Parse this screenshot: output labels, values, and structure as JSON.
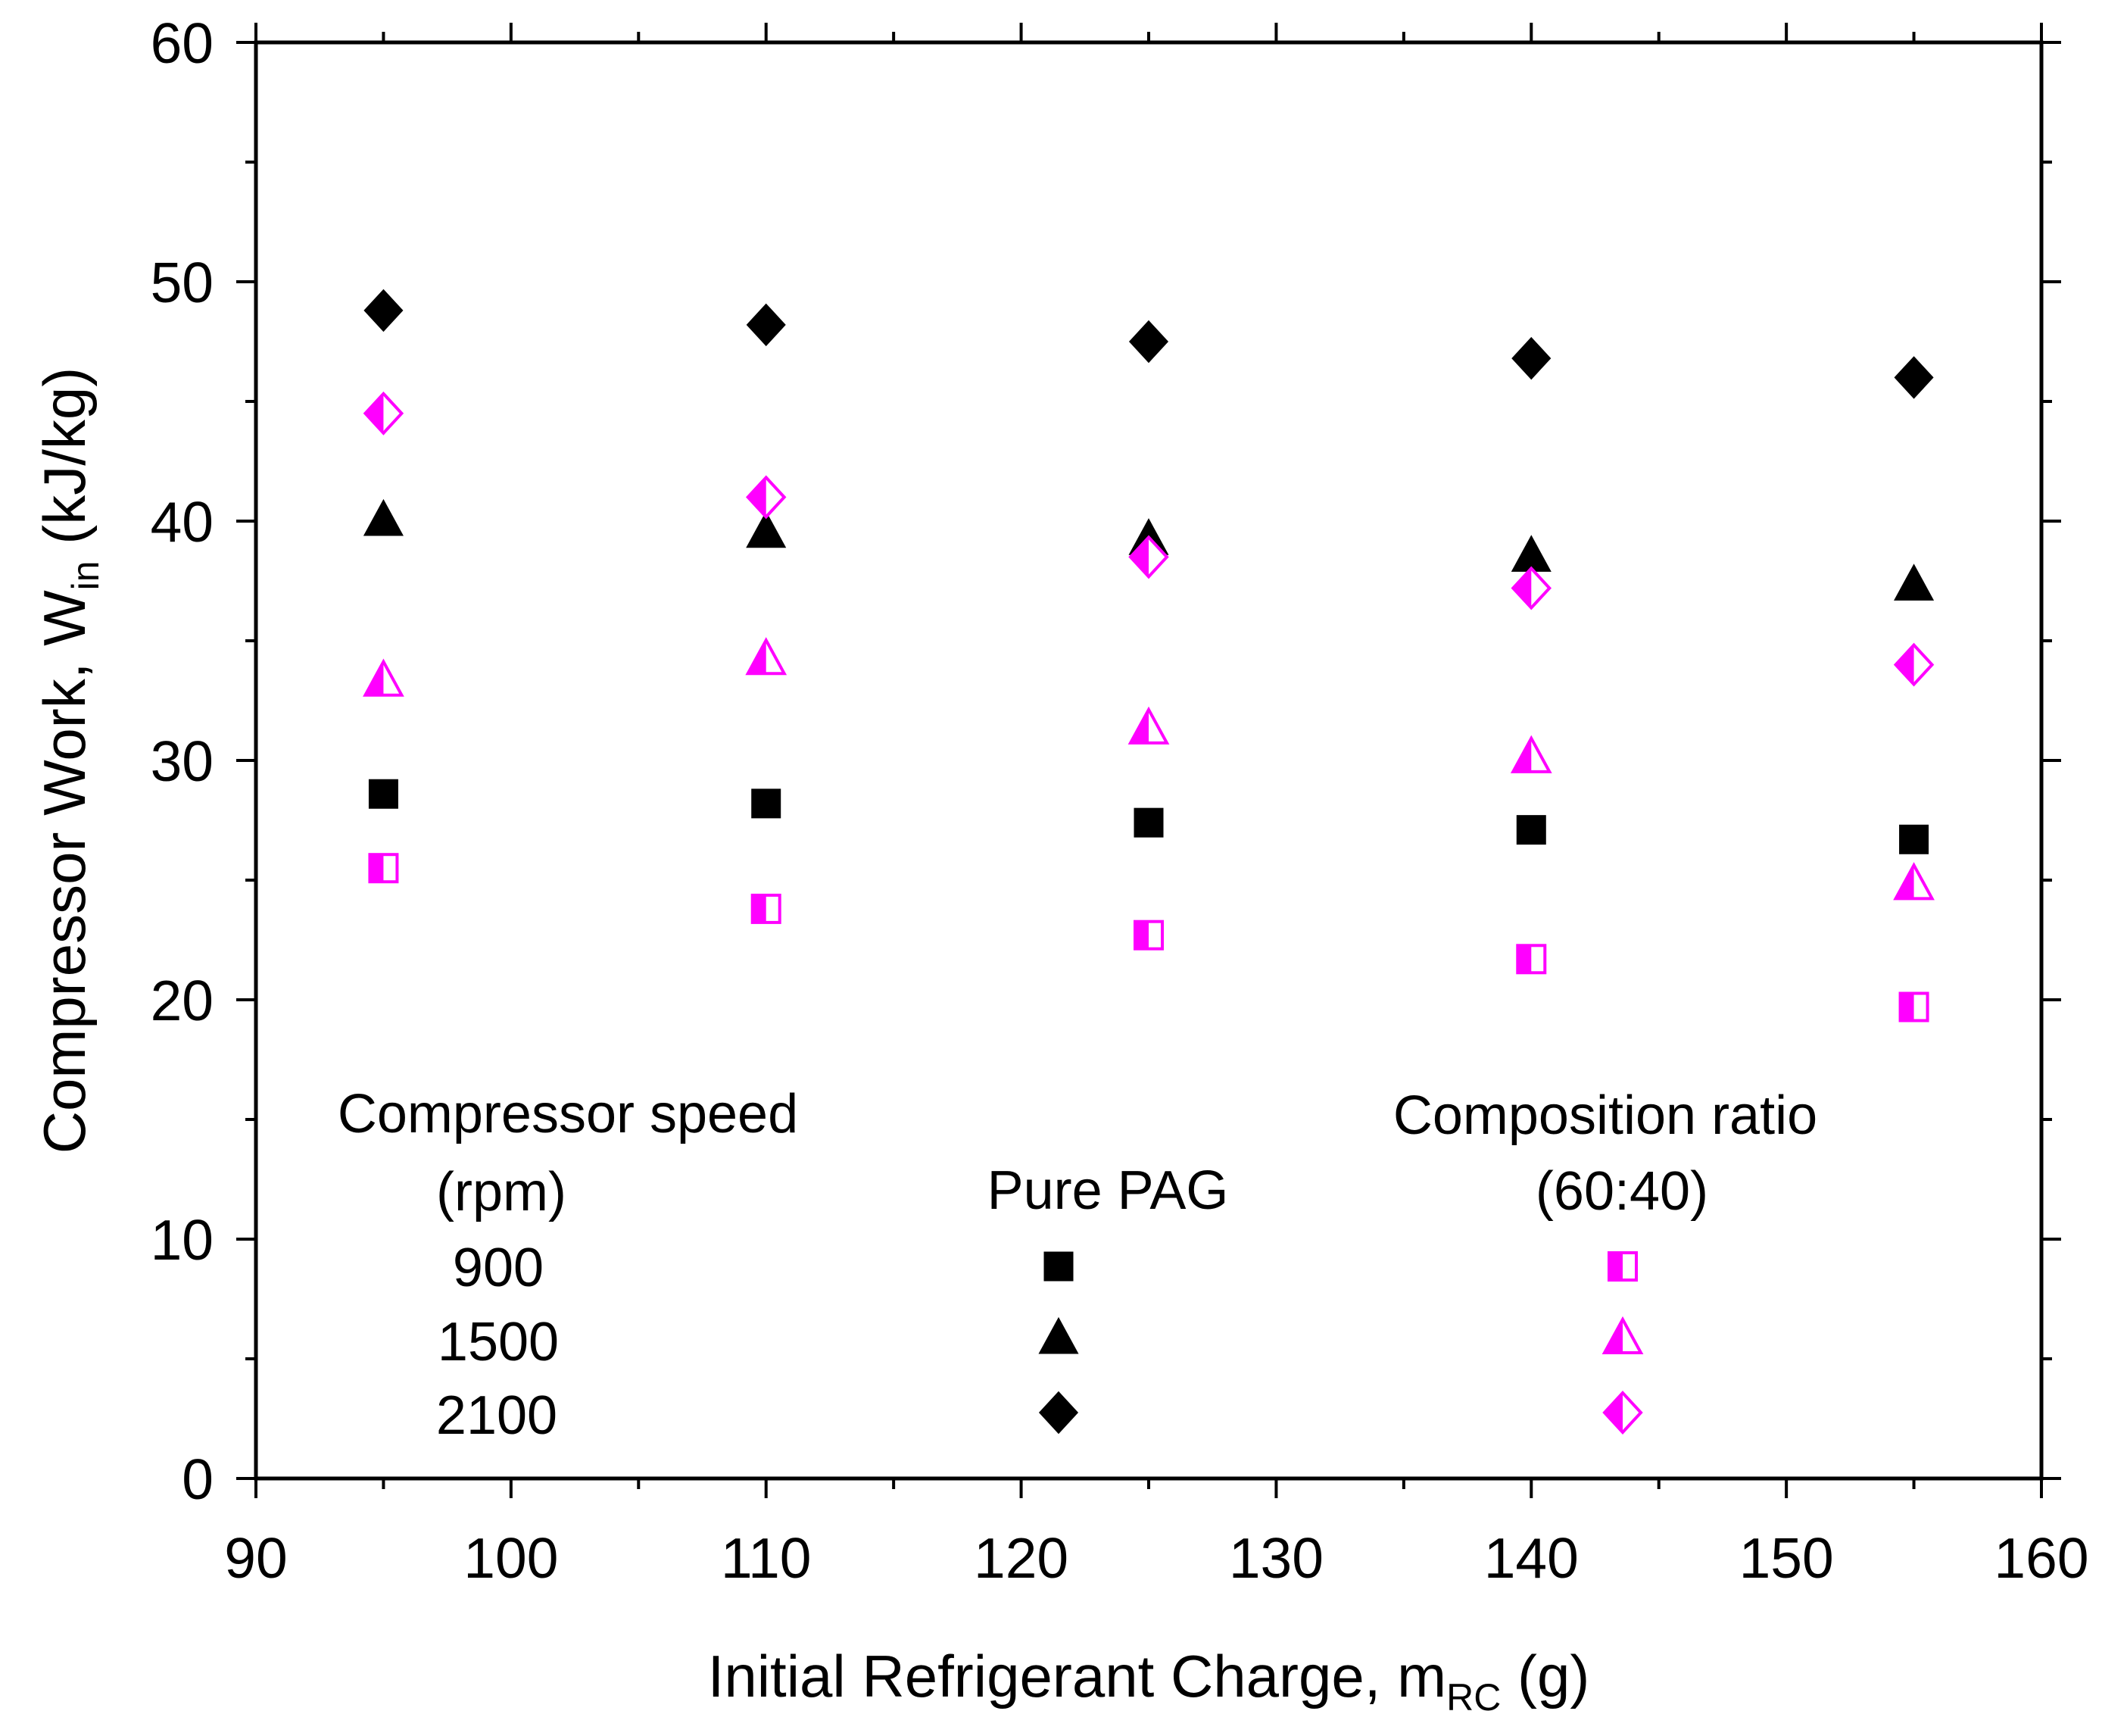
{
  "chart_data": {
    "type": "scatter",
    "title": "",
    "xlabel": "Initial Refrigerant Charge, m",
    "xlabel_sub": "RC",
    "xlabel_unit": " (g)",
    "ylabel": "Compressor Work, W",
    "ylabel_sub": "in",
    "ylabel_unit": " (kJ/kg)",
    "xlim": [
      90,
      160
    ],
    "ylim": [
      0,
      60
    ],
    "x_ticks": [
      "90",
      "100",
      "110",
      "120",
      "130",
      "140",
      "150",
      "160"
    ],
    "y_ticks": [
      "0",
      "10",
      "20",
      "30",
      "40",
      "50",
      "60"
    ],
    "x": [
      95,
      110,
      125,
      140,
      155
    ],
    "series": [
      {
        "name": "Pure PAG 900 rpm",
        "marker": "square",
        "fill": "solid",
        "color": "#000000",
        "values": [
          28.6,
          28.2,
          27.4,
          27.1,
          26.7
        ]
      },
      {
        "name": "Pure PAG 1500 rpm",
        "marker": "triangle",
        "fill": "solid",
        "color": "#000000",
        "values": [
          40.0,
          39.5,
          39.2,
          38.5,
          37.3
        ]
      },
      {
        "name": "Pure PAG 2100 rpm",
        "marker": "diamond",
        "fill": "solid",
        "color": "#000000",
        "values": [
          48.8,
          48.2,
          47.5,
          46.8,
          46.0
        ]
      },
      {
        "name": "60:40 900 rpm",
        "marker": "square",
        "fill": "half",
        "color": "#ff00ff",
        "values": [
          25.5,
          23.8,
          22.7,
          21.7,
          19.7
        ]
      },
      {
        "name": "60:40 1500 rpm",
        "marker": "triangle",
        "fill": "half",
        "color": "#ff00ff",
        "values": [
          33.3,
          34.2,
          31.3,
          30.1,
          24.8
        ]
      },
      {
        "name": "60:40 2100 rpm",
        "marker": "diamond",
        "fill": "half",
        "color": "#ff00ff",
        "values": [
          44.5,
          41.0,
          38.5,
          37.2,
          34.0
        ]
      }
    ],
    "legend": {
      "placement": "bottom-inside",
      "speed_title_line1": "Compressor speed",
      "speed_title_line2": "(rpm)",
      "speeds": [
        "900",
        "1500",
        "2100"
      ],
      "col1_title": "Pure PAG",
      "col2_title_line1": "Composition ratio",
      "col2_title_line2": "(60:40)"
    },
    "colors": {
      "pure": "#000000",
      "mix": "#ff00ff",
      "axis": "#000000",
      "background": "#ffffff"
    }
  }
}
